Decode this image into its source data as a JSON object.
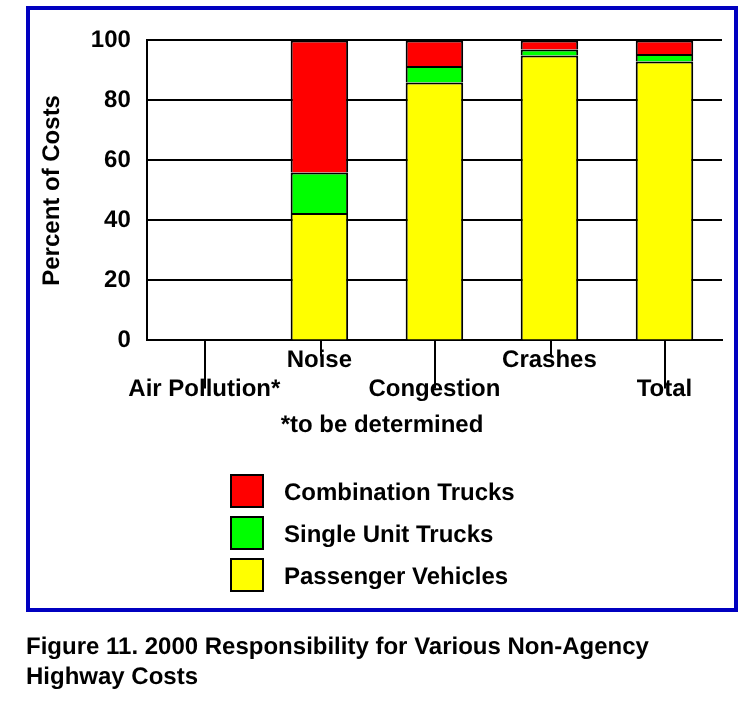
{
  "chart_data": {
    "type": "bar",
    "title": "Figure 11. 2000 Responsibility for Various Non-Agency Highway Costs",
    "ylabel": "Percent of Costs",
    "categories": [
      "Air Pollution*",
      "Noise",
      "Congestion",
      "Crashes",
      "Total"
    ],
    "stacked": true,
    "ylim": [
      0,
      100
    ],
    "yticks": [
      0,
      20,
      40,
      60,
      80,
      100
    ],
    "grid": "y",
    "legend": "bottom",
    "annotations": [
      "*to be determined"
    ],
    "series": [
      {
        "name": "Passenger Vehicles",
        "color": "#ffff00",
        "values": [
          null,
          42.5,
          86,
          95,
          93
        ]
      },
      {
        "name": "Single Unit Trucks",
        "color": "#00ff00",
        "values": [
          null,
          13.5,
          5.5,
          2,
          2.5
        ]
      },
      {
        "name": "Combination Trucks",
        "color": "#ff0000",
        "values": [
          null,
          44,
          8.5,
          3,
          4.5
        ]
      }
    ]
  }
}
